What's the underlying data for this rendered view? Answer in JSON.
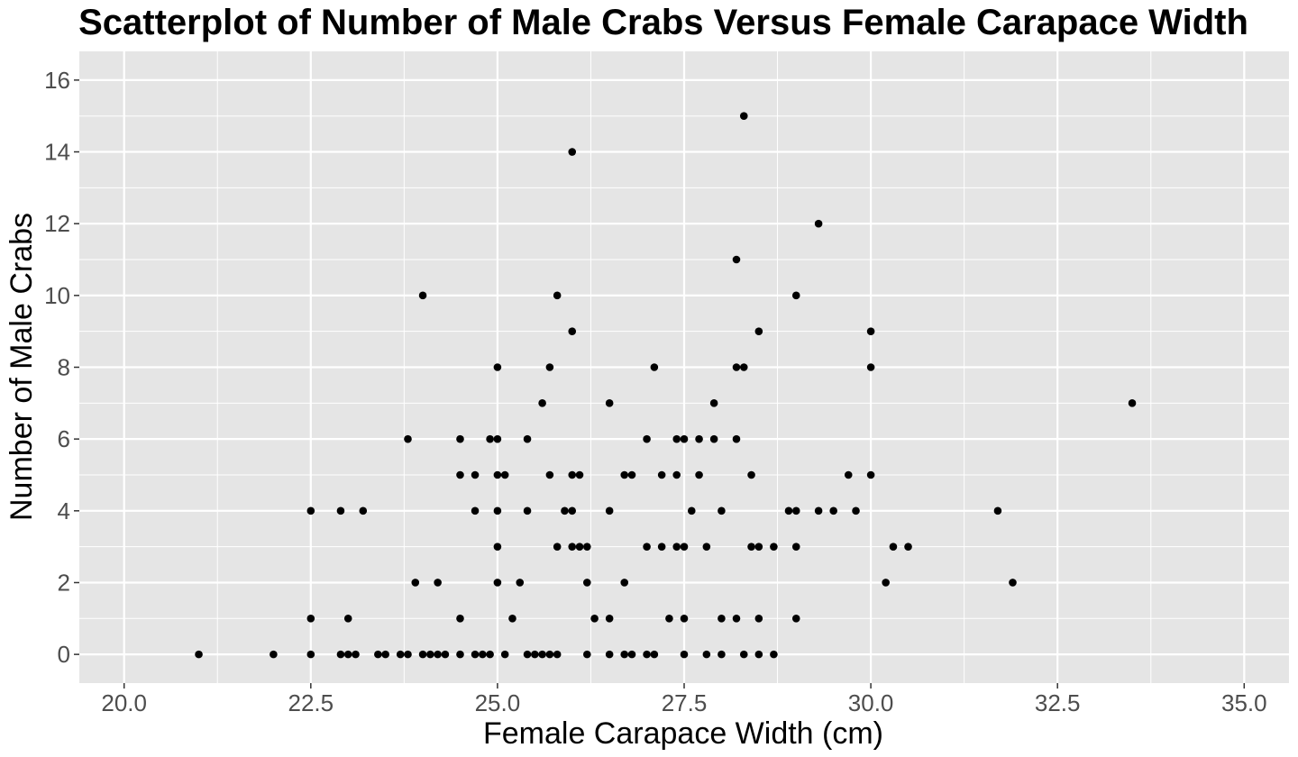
{
  "chart_data": {
    "type": "scatter",
    "title": "Scatterplot of Number of Male Crabs Versus Female Carapace Width",
    "xlabel": "Female Carapace Width (cm)",
    "ylabel": "Number of Male Crabs",
    "xlim": [
      19.4,
      35.6
    ],
    "ylim": [
      -0.8,
      16.8
    ],
    "x_ticks": [
      "20.0",
      "22.5",
      "25.0",
      "27.5",
      "30.0",
      "32.5",
      "35.0"
    ],
    "y_ticks": [
      "0",
      "2",
      "4",
      "6",
      "8",
      "10",
      "12",
      "14",
      "16"
    ],
    "grid": true,
    "background": "#e5e5e5",
    "grid_color": "#ffffff",
    "point_color": "#000000",
    "points": [
      [
        21.0,
        0
      ],
      [
        22.0,
        0
      ],
      [
        22.5,
        0
      ],
      [
        22.5,
        1
      ],
      [
        22.5,
        4
      ],
      [
        22.9,
        0
      ],
      [
        22.9,
        4
      ],
      [
        23.0,
        0
      ],
      [
        23.0,
        1
      ],
      [
        23.1,
        0
      ],
      [
        23.2,
        4
      ],
      [
        23.4,
        0
      ],
      [
        23.5,
        0
      ],
      [
        23.7,
        0
      ],
      [
        23.8,
        0
      ],
      [
        23.8,
        6
      ],
      [
        23.9,
        2
      ],
      [
        24.0,
        0
      ],
      [
        24.0,
        10
      ],
      [
        24.1,
        0
      ],
      [
        24.2,
        0
      ],
      [
        24.2,
        2
      ],
      [
        24.3,
        0
      ],
      [
        24.5,
        0
      ],
      [
        24.5,
        1
      ],
      [
        24.5,
        5
      ],
      [
        24.5,
        6
      ],
      [
        24.7,
        0
      ],
      [
        24.7,
        4
      ],
      [
        24.7,
        5
      ],
      [
        24.8,
        0
      ],
      [
        24.9,
        0
      ],
      [
        24.9,
        6
      ],
      [
        25.0,
        2
      ],
      [
        25.0,
        3
      ],
      [
        25.0,
        4
      ],
      [
        25.0,
        5
      ],
      [
        25.0,
        6
      ],
      [
        25.0,
        8
      ],
      [
        25.1,
        0
      ],
      [
        25.1,
        5
      ],
      [
        25.2,
        1
      ],
      [
        25.3,
        2
      ],
      [
        25.4,
        0
      ],
      [
        25.4,
        4
      ],
      [
        25.4,
        6
      ],
      [
        25.5,
        0
      ],
      [
        25.6,
        0
      ],
      [
        25.6,
        7
      ],
      [
        25.7,
        0
      ],
      [
        25.7,
        5
      ],
      [
        25.7,
        8
      ],
      [
        25.8,
        0
      ],
      [
        25.8,
        3
      ],
      [
        25.8,
        10
      ],
      [
        25.9,
        4
      ],
      [
        26.0,
        3
      ],
      [
        26.0,
        4
      ],
      [
        26.0,
        5
      ],
      [
        26.0,
        9
      ],
      [
        26.0,
        14
      ],
      [
        26.1,
        3
      ],
      [
        26.1,
        5
      ],
      [
        26.2,
        0
      ],
      [
        26.2,
        2
      ],
      [
        26.2,
        3
      ],
      [
        26.3,
        1
      ],
      [
        26.5,
        0
      ],
      [
        26.5,
        1
      ],
      [
        26.5,
        4
      ],
      [
        26.5,
        7
      ],
      [
        26.7,
        0
      ],
      [
        26.7,
        2
      ],
      [
        26.7,
        5
      ],
      [
        26.8,
        0
      ],
      [
        26.8,
        5
      ],
      [
        27.0,
        0
      ],
      [
        27.0,
        3
      ],
      [
        27.0,
        6
      ],
      [
        27.1,
        0
      ],
      [
        27.1,
        8
      ],
      [
        27.2,
        3
      ],
      [
        27.2,
        5
      ],
      [
        27.3,
        1
      ],
      [
        27.4,
        3
      ],
      [
        27.4,
        5
      ],
      [
        27.4,
        6
      ],
      [
        27.5,
        0
      ],
      [
        27.5,
        1
      ],
      [
        27.5,
        3
      ],
      [
        27.5,
        6
      ],
      [
        27.6,
        4
      ],
      [
        27.7,
        5
      ],
      [
        27.7,
        6
      ],
      [
        27.8,
        0
      ],
      [
        27.8,
        3
      ],
      [
        27.9,
        6
      ],
      [
        27.9,
        7
      ],
      [
        28.0,
        0
      ],
      [
        28.0,
        1
      ],
      [
        28.0,
        4
      ],
      [
        28.2,
        1
      ],
      [
        28.2,
        6
      ],
      [
        28.2,
        8
      ],
      [
        28.2,
        11
      ],
      [
        28.3,
        0
      ],
      [
        28.3,
        8
      ],
      [
        28.3,
        15
      ],
      [
        28.4,
        3
      ],
      [
        28.4,
        5
      ],
      [
        28.5,
        0
      ],
      [
        28.5,
        1
      ],
      [
        28.5,
        3
      ],
      [
        28.5,
        9
      ],
      [
        28.7,
        0
      ],
      [
        28.7,
        3
      ],
      [
        28.9,
        4
      ],
      [
        29.0,
        1
      ],
      [
        29.0,
        3
      ],
      [
        29.0,
        4
      ],
      [
        29.0,
        10
      ],
      [
        29.3,
        4
      ],
      [
        29.3,
        12
      ],
      [
        29.5,
        4
      ],
      [
        29.7,
        5
      ],
      [
        29.8,
        4
      ],
      [
        30.0,
        5
      ],
      [
        30.0,
        8
      ],
      [
        30.0,
        9
      ],
      [
        30.2,
        2
      ],
      [
        30.3,
        3
      ],
      [
        30.5,
        3
      ],
      [
        31.7,
        4
      ],
      [
        31.9,
        2
      ],
      [
        33.5,
        7
      ]
    ]
  }
}
